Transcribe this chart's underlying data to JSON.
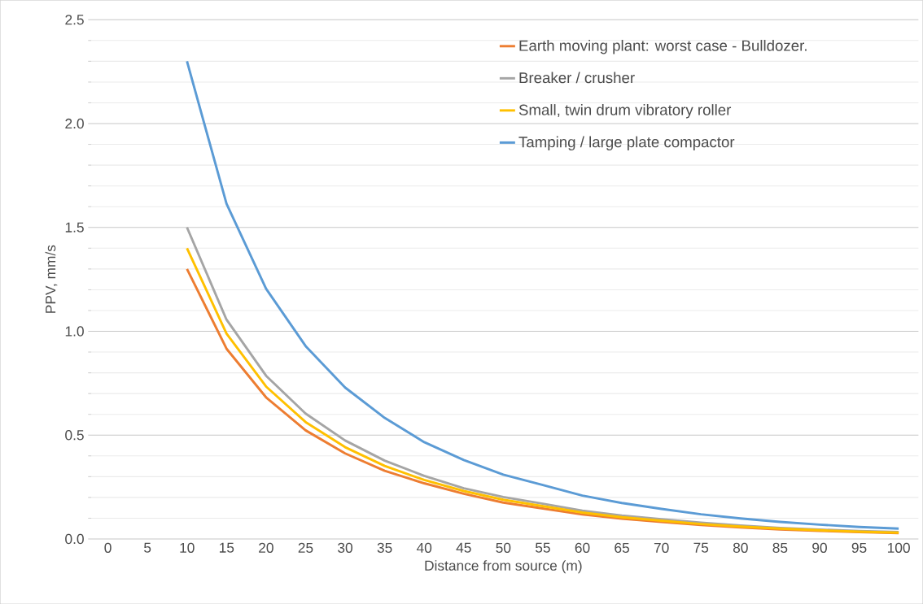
{
  "chart_data": {
    "type": "line",
    "xlabel": "Distance from source (m)",
    "ylabel": "PPV, mm/s",
    "categories": [
      "0",
      "5",
      "10",
      "15",
      "20",
      "25",
      "30",
      "35",
      "40",
      "45",
      "50",
      "55",
      "60",
      "65",
      "70",
      "75",
      "80",
      "85",
      "90",
      "95",
      "100"
    ],
    "series": [
      {
        "name": "Earth moving plant: worst case - Bulldozer.",
        "color": "#ed7d31",
        "values": [
          null,
          null,
          1.3,
          0.916,
          0.682,
          0.523,
          0.412,
          0.328,
          0.268,
          0.218,
          0.175,
          0.147,
          0.118,
          0.098,
          0.082,
          0.067,
          0.056,
          0.046,
          0.039,
          0.033,
          0.028
        ]
      },
      {
        "name": "Breaker / crusher",
        "color": "#a5a5a5",
        "values": [
          null,
          null,
          1.5,
          1.056,
          0.786,
          0.604,
          0.474,
          0.377,
          0.304,
          0.244,
          0.202,
          0.17,
          0.136,
          0.113,
          0.095,
          0.078,
          0.065,
          0.053,
          0.045,
          0.038,
          0.033
        ]
      },
      {
        "name": "Small, twin drum vibratory roller",
        "color": "#ffc000",
        "values": [
          null,
          null,
          1.4,
          0.989,
          0.734,
          0.563,
          0.442,
          0.352,
          0.284,
          0.231,
          0.189,
          0.158,
          0.127,
          0.105,
          0.088,
          0.072,
          0.06,
          0.05,
          0.042,
          0.035,
          0.03
        ]
      },
      {
        "name": "Tamping / large plate compactor",
        "color": "#5b9bd5",
        "values": [
          null,
          null,
          2.3,
          1.614,
          1.205,
          0.929,
          0.729,
          0.583,
          0.466,
          0.38,
          0.31,
          0.26,
          0.209,
          0.173,
          0.145,
          0.119,
          0.099,
          0.082,
          0.069,
          0.058,
          0.05
        ]
      }
    ],
    "ylim": [
      0,
      2.5
    ],
    "yticks": [
      {
        "value": 0,
        "label": "0.0"
      },
      {
        "value": 0.5,
        "label": "0.5"
      },
      {
        "value": 1,
        "label": "1.0"
      },
      {
        "value": 1.5,
        "label": "1.5"
      },
      {
        "value": 2,
        "label": "2.0"
      },
      {
        "value": 2.5,
        "label": "2.5"
      }
    ],
    "grid": "y",
    "legend": "top right",
    "marker": "none",
    "line_style": "solid"
  }
}
